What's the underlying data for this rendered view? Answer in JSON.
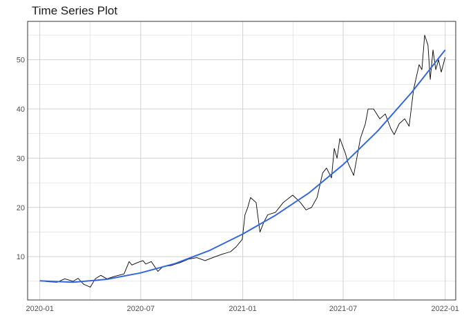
{
  "chart_data": {
    "type": "line",
    "title": "Time Series Plot",
    "xlabel": "",
    "ylabel": "",
    "grid": true,
    "legend": "none",
    "x_ticks": [
      "2020-01",
      "2020-07",
      "2021-01",
      "2021-07",
      "2022-01"
    ],
    "y_ticks": [
      10,
      20,
      30,
      40,
      50
    ],
    "xlim": [
      "2019-12-10",
      "2022-01-20"
    ],
    "ylim": [
      1.2,
      57.8
    ],
    "colors": {
      "series": "#000000",
      "trend": "#3366dd",
      "grid": "#d0d0d0",
      "border": "#333333"
    },
    "series": [
      {
        "style": "raw",
        "x": [
          "2020-01-01",
          "2020-01-15",
          "2020-02-01",
          "2020-02-15",
          "2020-03-01",
          "2020-03-10",
          "2020-03-20",
          "2020-04-01",
          "2020-04-10",
          "2020-04-20",
          "2020-05-01",
          "2020-05-15",
          "2020-06-01",
          "2020-06-10",
          "2020-06-15",
          "2020-06-25",
          "2020-07-05",
          "2020-07-10",
          "2020-07-20",
          "2020-08-01",
          "2020-08-10",
          "2020-08-25",
          "2020-09-10",
          "2020-09-25",
          "2020-10-10",
          "2020-10-25",
          "2020-11-10",
          "2020-11-25",
          "2020-12-10",
          "2020-12-20",
          "2020-12-31",
          "2021-01-05",
          "2021-01-10",
          "2021-01-15",
          "2021-01-25",
          "2021-02-01",
          "2021-02-08",
          "2021-02-15",
          "2021-03-01",
          "2021-03-15",
          "2021-04-01",
          "2021-04-15",
          "2021-04-25",
          "2021-05-05",
          "2021-05-15",
          "2021-05-25",
          "2021-06-01",
          "2021-06-10",
          "2021-06-15",
          "2021-06-20",
          "2021-06-25",
          "2021-07-05",
          "2021-07-10",
          "2021-07-20",
          "2021-08-01",
          "2021-08-10",
          "2021-08-15",
          "2021-08-25",
          "2021-09-05",
          "2021-09-15",
          "2021-09-25",
          "2021-10-01",
          "2021-10-10",
          "2021-10-20",
          "2021-10-28",
          "2021-11-05",
          "2021-11-15",
          "2021-11-20",
          "2021-11-25",
          "2021-12-01",
          "2021-12-05",
          "2021-12-10",
          "2021-12-15",
          "2021-12-20",
          "2021-12-25",
          "2022-01-01"
        ],
        "y": [
          5.1,
          4.9,
          4.8,
          5.5,
          5.0,
          5.6,
          4.4,
          3.8,
          5.5,
          6.2,
          5.5,
          6.0,
          6.5,
          9.0,
          8.3,
          8.8,
          9.2,
          8.5,
          9.0,
          7.0,
          8.0,
          8.2,
          8.8,
          9.5,
          9.8,
          9.2,
          9.9,
          10.5,
          11.0,
          12.0,
          13.5,
          18.5,
          20.0,
          22.0,
          21.0,
          15.0,
          17.0,
          18.5,
          19.0,
          21.0,
          22.5,
          21.0,
          19.5,
          20.0,
          22.0,
          27.0,
          28.0,
          26.0,
          32.0,
          30.0,
          34.0,
          31.0,
          29.0,
          26.5,
          34.0,
          37.0,
          40.0,
          40.0,
          38.0,
          39.0,
          36.0,
          34.8,
          37.0,
          38.0,
          36.5,
          44.0,
          49.0,
          48.0,
          55.0,
          53.0,
          46.0,
          52.0,
          48.0,
          50.0,
          47.5,
          50.5
        ]
      },
      {
        "style": "smooth",
        "x": [
          "2020-01-01",
          "2020-03-01",
          "2020-05-01",
          "2020-07-01",
          "2020-09-01",
          "2020-11-01",
          "2021-01-01",
          "2021-03-01",
          "2021-05-01",
          "2021-07-01",
          "2021-09-01",
          "2021-11-01",
          "2022-01-01"
        ],
        "y": [
          5.1,
          4.8,
          5.4,
          6.7,
          8.6,
          11.2,
          14.6,
          18.4,
          23.0,
          28.7,
          35.5,
          43.3,
          52.0
        ]
      }
    ]
  }
}
